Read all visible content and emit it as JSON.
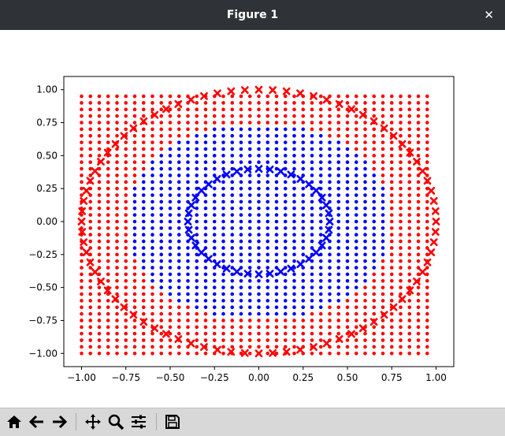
{
  "window": {
    "title": "Figure 1",
    "close_glyph": "✕"
  },
  "toolbar": {
    "buttons": [
      {
        "name": "home-icon",
        "label": "Home"
      },
      {
        "name": "back-arrow-icon",
        "label": "Back"
      },
      {
        "name": "forward-arrow-icon",
        "label": "Forward"
      },
      {
        "name": "pan-icon",
        "label": "Pan"
      },
      {
        "name": "zoom-icon",
        "label": "Zoom"
      },
      {
        "name": "configure-subplots-icon",
        "label": "Configure subplots"
      },
      {
        "name": "save-icon",
        "label": "Save"
      }
    ]
  },
  "chart_data": {
    "type": "scatter",
    "title": "",
    "xlabel": "",
    "ylabel": "",
    "xlim": [
      -1.1,
      1.1
    ],
    "ylim": [
      -1.1,
      1.1
    ],
    "xticks": [
      -1.0,
      -0.75,
      -0.5,
      -0.25,
      0.0,
      0.25,
      0.5,
      0.75,
      1.0
    ],
    "yticks": [
      -1.0,
      -0.75,
      -0.5,
      -0.25,
      0.0,
      0.25,
      0.5,
      0.75,
      1.0
    ],
    "xtick_labels": [
      "−1.00",
      "−0.75",
      "−0.50",
      "−0.25",
      "0.00",
      "0.25",
      "0.50",
      "0.75",
      "1.00"
    ],
    "ytick_labels": [
      "−1.00",
      "−0.75",
      "−0.50",
      "−0.25",
      "0.00",
      "0.25",
      "0.50",
      "0.75",
      "1.00"
    ],
    "grid": false,
    "series": [
      {
        "marker": "dot",
        "color": "#ff0000",
        "grid_x": [
          -1.0,
          0.95,
          0.05
        ],
        "grid_y": [
          -1.0,
          0.95,
          0.05
        ],
        "rule": "grid points outside blue region"
      },
      {
        "marker": "dot",
        "color": "#0000ff",
        "region": "square |x|<=0.7,|y|<=0.7 clipped by circle r=0.75 (approx)"
      },
      {
        "marker": "x",
        "color": "#ff0000",
        "shape": "circle",
        "radius": 1.0,
        "count": 80
      },
      {
        "marker": "x",
        "color": "#0000ff",
        "shape": "circle",
        "radius": 0.4,
        "count": 40
      }
    ]
  }
}
